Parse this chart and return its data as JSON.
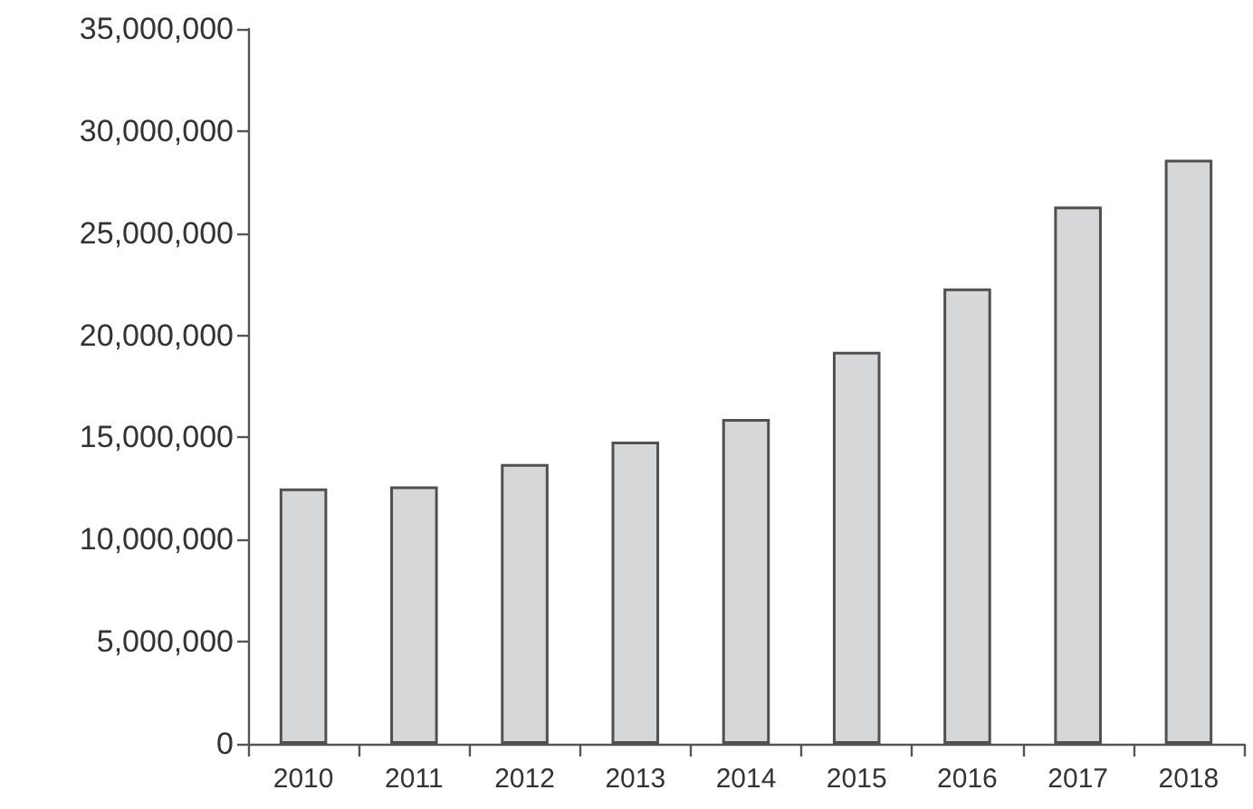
{
  "chart_data": {
    "type": "bar",
    "categories": [
      "2010",
      "2011",
      "2012",
      "2013",
      "2014",
      "2015",
      "2016",
      "2017",
      "2018"
    ],
    "values": [
      12500000,
      12600000,
      13700000,
      14800000,
      15900000,
      19200000,
      22300000,
      26300000,
      28600000
    ],
    "color": "#d5d7d9",
    "ylim": [
      0,
      35000000
    ],
    "yticks": [
      {
        "value": 0,
        "label": "0"
      },
      {
        "value": 5000000,
        "label": "5,000,000"
      },
      {
        "value": 10000000,
        "label": "10,000,000"
      },
      {
        "value": 15000000,
        "label": "15,000,000"
      },
      {
        "value": 20000000,
        "label": "20,000,000"
      },
      {
        "value": 25000000,
        "label": "25,000,000"
      },
      {
        "value": 30000000,
        "label": "30,000,000"
      },
      {
        "value": 35000000,
        "label": "35,000,000"
      }
    ],
    "grid": false
  }
}
